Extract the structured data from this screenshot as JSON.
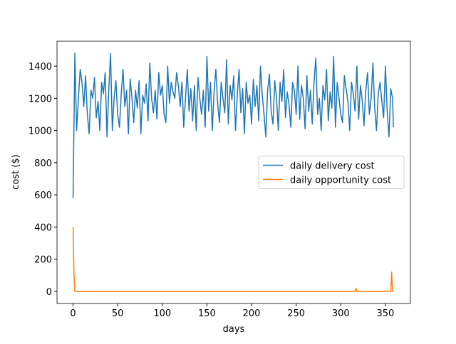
{
  "chart_data": {
    "type": "line",
    "xlabel": "days",
    "ylabel": "cost ($)",
    "xlim": [
      -18,
      378
    ],
    "ylim": [
      -75,
      1555
    ],
    "xticks": [
      0,
      50,
      100,
      150,
      200,
      250,
      300,
      350
    ],
    "yticks": [
      0,
      200,
      400,
      600,
      800,
      1000,
      1200,
      1400
    ],
    "legend": "center right",
    "series": [
      {
        "name": "daily delivery cost",
        "color": "#1f77b4",
        "x": [
          0,
          2,
          4,
          6,
          8,
          10,
          12,
          14,
          16,
          18,
          20,
          22,
          24,
          26,
          28,
          30,
          32,
          34,
          36,
          38,
          40,
          42,
          44,
          46,
          48,
          50,
          52,
          54,
          56,
          58,
          60,
          62,
          64,
          66,
          68,
          70,
          72,
          74,
          76,
          78,
          80,
          82,
          84,
          86,
          88,
          90,
          92,
          94,
          96,
          98,
          100,
          102,
          104,
          106,
          108,
          110,
          112,
          114,
          116,
          118,
          120,
          122,
          124,
          126,
          128,
          130,
          132,
          134,
          136,
          138,
          140,
          142,
          144,
          146,
          148,
          150,
          152,
          154,
          156,
          158,
          160,
          162,
          164,
          166,
          168,
          170,
          172,
          174,
          176,
          178,
          180,
          182,
          184,
          186,
          188,
          190,
          192,
          194,
          196,
          198,
          200,
          202,
          204,
          206,
          208,
          210,
          212,
          214,
          216,
          218,
          220,
          222,
          224,
          226,
          228,
          230,
          232,
          234,
          236,
          238,
          240,
          242,
          244,
          246,
          248,
          250,
          252,
          254,
          256,
          258,
          260,
          262,
          264,
          266,
          268,
          270,
          272,
          274,
          276,
          278,
          280,
          282,
          284,
          286,
          288,
          290,
          292,
          294,
          296,
          298,
          300,
          302,
          304,
          306,
          308,
          310,
          312,
          314,
          316,
          318,
          320,
          322,
          324,
          326,
          328,
          330,
          332,
          334,
          336,
          338,
          340,
          342,
          344,
          346,
          348,
          350,
          352,
          354,
          356,
          358,
          359
        ],
        "values": [
          580,
          1480,
          1000,
          1200,
          1380,
          1300,
          1150,
          1340,
          1100,
          980,
          1250,
          1200,
          1330,
          1080,
          1180,
          1000,
          1300,
          1230,
          1360,
          960,
          1250,
          1480,
          1000,
          1200,
          1310,
          1100,
          1020,
          1230,
          1380,
          1150,
          1250,
          980,
          1320,
          1200,
          1050,
          1250,
          1140,
          1310,
          980,
          1220,
          1170,
          1290,
          1060,
          1420,
          1200,
          1110,
          1250,
          1070,
          1360,
          1220,
          1280,
          1100,
          1050,
          1400,
          1170,
          1300,
          1240,
          1200,
          1360,
          1280,
          1150,
          1300,
          1020,
          1200,
          1380,
          1120,
          1260,
          1060,
          1280,
          1000,
          1330,
          1200,
          1100,
          1250,
          1020,
          1460,
          1120,
          1300,
          1000,
          1240,
          1380,
          1170,
          1050,
          1300,
          1200,
          1110,
          1440,
          1040,
          1280,
          1190,
          1340,
          1000,
          1220,
          1380,
          1110,
          1260,
          980,
          1300,
          1170,
          1220,
          1040,
          1320,
          1150,
          1280,
          1060,
          1400,
          1220,
          1100,
          960,
          1250,
          1350,
          1120,
          1040,
          1310,
          1200,
          1000,
          1300,
          1180,
          1380,
          1080,
          1240,
          1160,
          1020,
          1300,
          1250,
          1100,
          1400,
          1070,
          1280,
          1200,
          1010,
          1340,
          1120,
          1250,
          1040,
          1300,
          1450,
          1100,
          1200,
          1000,
          1280,
          1190,
          1380,
          1060,
          1240,
          1140,
          1460,
          1020,
          1300,
          1200,
          1100,
          1050,
          1340,
          1260,
          1180,
          1000,
          1300,
          1230,
          1120,
          1400,
          1070,
          1280,
          1190,
          1030,
          1250,
          1360,
          1100,
          1200,
          1420,
          1140,
          1000,
          1230,
          1300,
          1180,
          1080,
          1400,
          1120,
          960,
          1260,
          1200,
          1020
        ]
      },
      {
        "name": "daily opportunity cost",
        "color": "#ff7f0e",
        "x": [
          0,
          1,
          2,
          3,
          315,
          316,
          317,
          318,
          319,
          354,
          355,
          356,
          357,
          358,
          359
        ],
        "values": [
          400,
          110,
          0,
          0,
          0,
          0,
          20,
          0,
          0,
          0,
          0,
          0,
          120,
          0,
          0
        ]
      }
    ]
  }
}
